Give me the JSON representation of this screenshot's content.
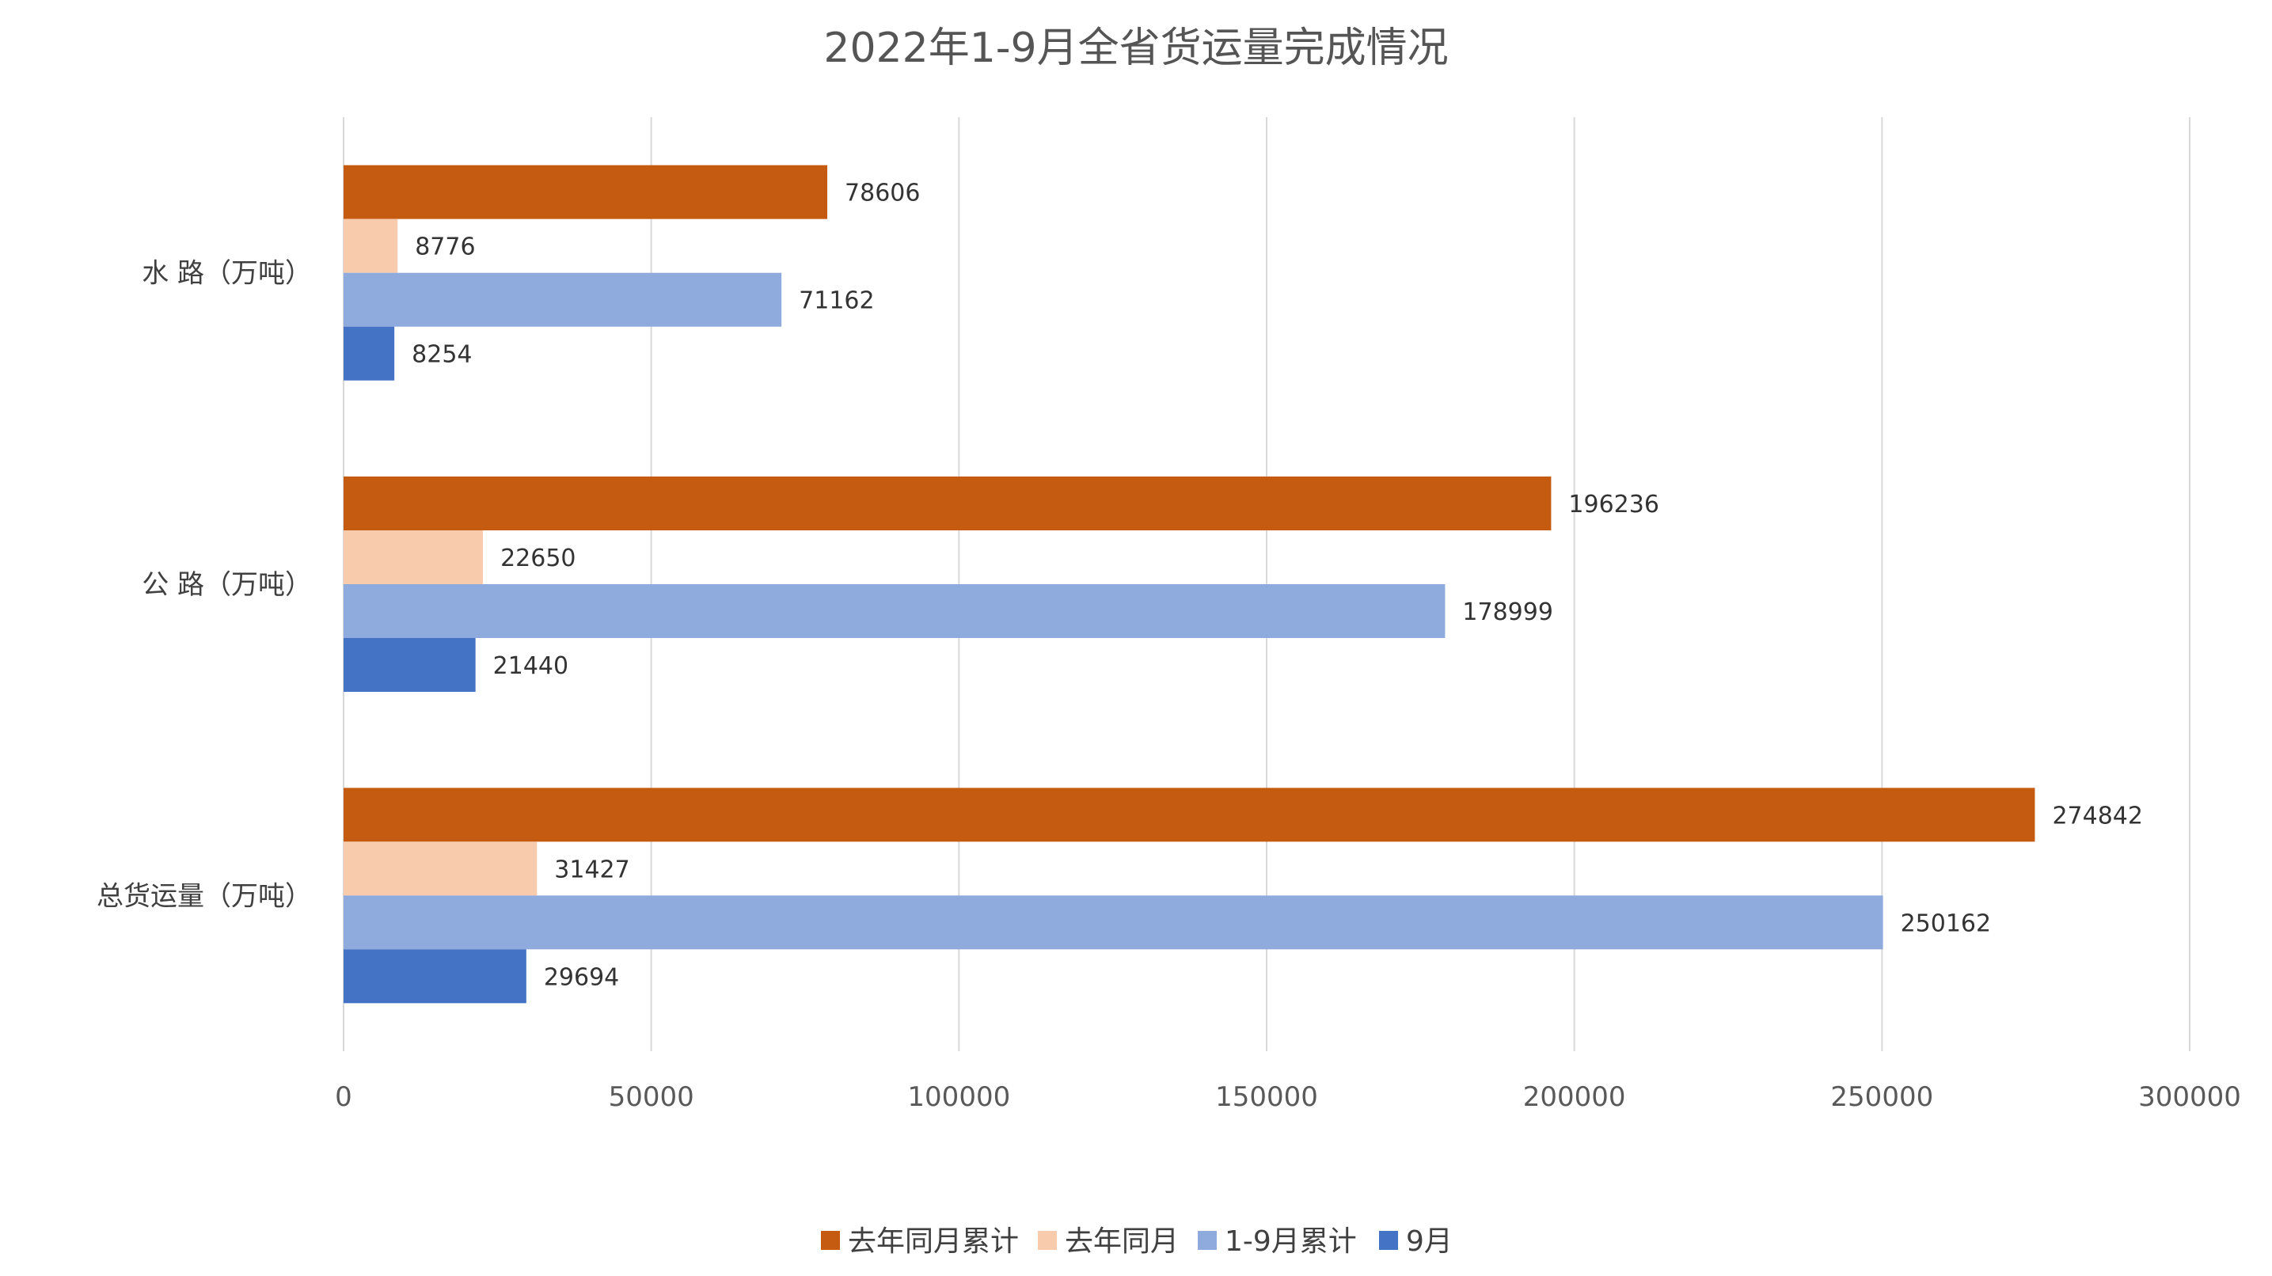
{
  "chart_data": {
    "type": "bar",
    "orientation": "horizontal",
    "title": "2022年1-9月全省货运量完成情况",
    "categories": [
      "水 路（万吨）",
      "公 路（万吨）",
      "总货运量（万吨）"
    ],
    "series": [
      {
        "name": "去年同月累计",
        "color": "#C55A11",
        "values": [
          78606,
          196236,
          274842
        ]
      },
      {
        "name": "去年同月",
        "color": "#F8CBAD",
        "values": [
          8776,
          22650,
          31427
        ]
      },
      {
        "name": "1-9月累计",
        "color": "#8FAADC",
        "values": [
          71162,
          178999,
          250162
        ]
      },
      {
        "name": "9月",
        "color": "#4472C4",
        "values": [
          8254,
          21440,
          29694
        ]
      }
    ],
    "xlim": [
      0,
      300000
    ],
    "x_ticks": [
      "0",
      "50000",
      "100000",
      "150000",
      "200000",
      "250000",
      "300000"
    ],
    "grid": true,
    "legend_position": "bottom",
    "data_labels": true
  }
}
